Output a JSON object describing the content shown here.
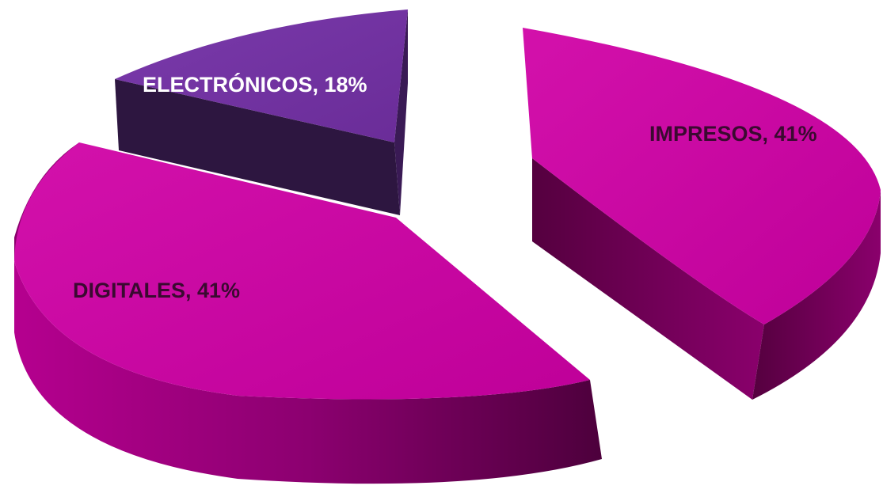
{
  "chart_data": {
    "type": "pie",
    "style": "3d-exploded",
    "legend": "none",
    "slices": [
      {
        "label": "IMPRESOS",
        "value": 41,
        "display": "IMPRESOS, 41%",
        "color": "#c6009e",
        "side_color": "#7a0061",
        "dark_color": "#4d003c",
        "label_color": "#3a0a30"
      },
      {
        "label": "DIGITALES",
        "value": 41,
        "display": "DIGITALES, 41%",
        "color": "#c6009e",
        "side_color": "#7a0061",
        "dark_color": "#4d003c",
        "label_color": "#3a0a30"
      },
      {
        "label": "ELECTRÓNICOS",
        "value": 18,
        "display": "ELECTRÓNICOS, 18%",
        "color": "#7030a0",
        "side_color": "#3a1a55",
        "dark_color": "#241334",
        "label_color": "#ffffff"
      }
    ]
  }
}
